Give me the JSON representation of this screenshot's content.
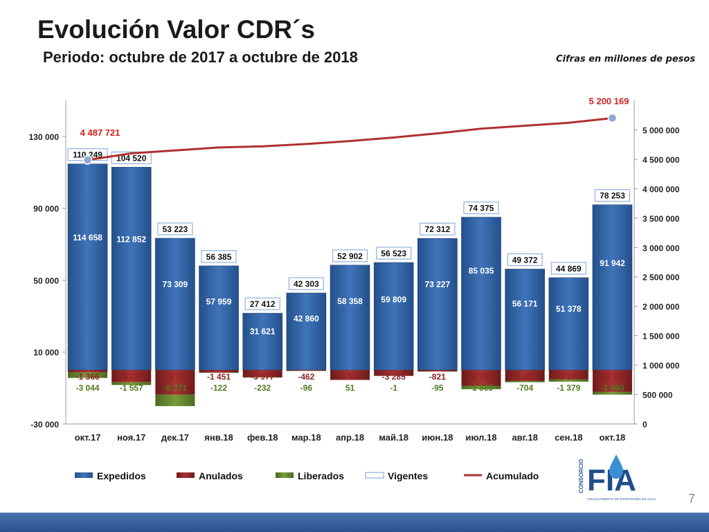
{
  "header": {
    "title": "Evolución Valor CDR´s",
    "subtitle": "Periodo: octubre de 2017 a octubre de 2018",
    "note": "Cifras en millones de pesos"
  },
  "page_number": "7",
  "logo": {
    "vertical_text": "CONSORCIO",
    "main_text": "FIA",
    "tagline": "FINANCIAMIENTO DE INVERSIONES EN AGUA"
  },
  "colors": {
    "expedidos": "#2f5f9e",
    "anulados": "#8b2323",
    "liberados": "#5a7a2a",
    "vigentes_border": "#8fb0dc",
    "acumulado": "#b03030",
    "acumulado_marker": "#8fa9d0"
  },
  "chart_data": {
    "type": "bar",
    "categories": [
      "окт.17",
      "ноя.17",
      "дек.17",
      "янв.18",
      "фев.18",
      "мар.18",
      "апр.18",
      "май.18",
      "июн.18",
      "июл.18",
      "авг.18",
      "сен.18",
      "окт.18"
    ],
    "series": [
      {
        "name": "Expedidos",
        "values": [
          114658,
          112852,
          73309,
          57959,
          31621,
          42860,
          58358,
          59809,
          73227,
          85035,
          56171,
          51378,
          91942
        ],
        "labels": [
          "114 658",
          "112 852",
          "73 309",
          "57 959",
          "31 621",
          "42 860",
          "58 358",
          "59 809",
          "73 227",
          "85 035",
          "56 171",
          "51 378",
          "91 942"
        ]
      },
      {
        "name": "Anulados",
        "values": [
          -1366,
          -6776,
          -13715,
          -1451,
          -3977,
          -462,
          -5508,
          -3285,
          -821,
          -8795,
          -6095,
          -5130,
          -12229
        ],
        "labels": [
          "-1 366",
          "-6 776",
          "-13 715",
          "-1 451",
          "-3 977",
          "-462",
          "-5 508",
          "-3 285",
          "-821",
          "-8 795",
          "-6 095",
          "-5 130",
          "-12 229"
        ]
      },
      {
        "name": "Liberados",
        "values": [
          -3044,
          -1557,
          -6371,
          -122,
          -232,
          -96,
          51,
          -1,
          -95,
          -1865,
          -704,
          -1379,
          -1460
        ],
        "labels": [
          "-3 044",
          "-1 557",
          "-6 371",
          "-122",
          "-232",
          "-96",
          "51",
          "-1",
          "-95",
          "-1 865",
          "-704",
          "-1 379",
          "-1 460"
        ]
      },
      {
        "name": "Vigentes",
        "values": [
          110249,
          104520,
          53223,
          56385,
          27412,
          42303,
          52902,
          56523,
          72312,
          74375,
          49372,
          44869,
          78253
        ],
        "labels": [
          "110 249",
          "104 520",
          "53 223",
          "56 385",
          "27 412",
          "42 303",
          "52 902",
          "56 523",
          "72 312",
          "74 375",
          "49 372",
          "44 869",
          "78 253"
        ]
      },
      {
        "name": "Acumulado",
        "axis": "right",
        "values": [
          4487721,
          4600000,
          4650000,
          4700000,
          4720000,
          4760000,
          4810000,
          4870000,
          4940000,
          5020000,
          5070000,
          5120000,
          5200169
        ],
        "labels": [
          "4 487 721",
          "",
          "",
          "",
          "",
          "",
          "",
          "",
          "",
          "",
          "",
          "",
          "5 200 169"
        ]
      }
    ],
    "ylim": [
      -30000,
      150000
    ],
    "yticks": [
      "-30 000",
      "10 000",
      "50 000",
      "90 000",
      "130 000"
    ],
    "yticks_values": [
      -30000,
      10000,
      50000,
      90000,
      130000
    ],
    "y2lim": [
      0,
      5500000
    ],
    "y2ticks": [
      "0",
      "500 000",
      "1 000 000",
      "1 500 000",
      "2 000 000",
      "2 500 000",
      "3 000 000",
      "3 500 000",
      "4 000 000",
      "4 500 000",
      "5 000 000"
    ],
    "y2ticks_values": [
      0,
      500000,
      1000000,
      1500000,
      2000000,
      2500000,
      3000000,
      3500000,
      4000000,
      4500000,
      5000000
    ],
    "legend": [
      "Expedidos",
      "Anulados",
      "Liberados",
      "Vigentes",
      "Acumulado"
    ],
    "legend_position": "bottom"
  }
}
